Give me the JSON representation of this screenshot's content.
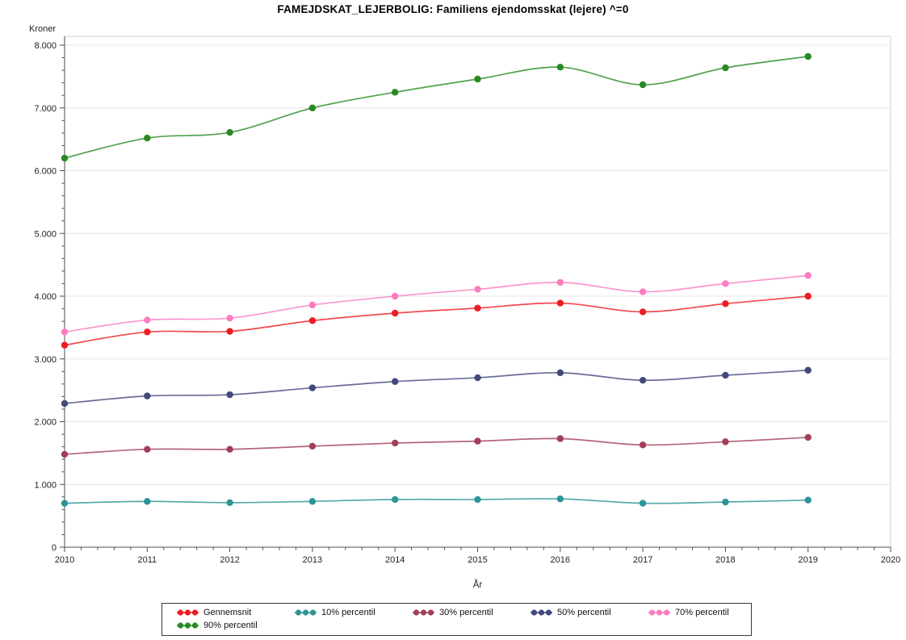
{
  "page": {
    "window_title": "FAMEJDSKAT_LEJERBOLIG: Familiens ejendomsskat (lejere) ^=0"
  },
  "chart_data": {
    "type": "line",
    "title": "FAMEJDSKAT_LEJERBOLIG: Familiens ejendomsskat (lejere) ^=0",
    "ylabel": "Kroner",
    "xlabel": "År",
    "x": [
      2010,
      2011,
      2012,
      2013,
      2014,
      2015,
      2016,
      2017,
      2018,
      2019
    ],
    "xlim": [
      2010,
      2020
    ],
    "ylim": [
      0,
      8000
    ],
    "y_tick_labels": [
      "0",
      "1.000",
      "2.000",
      "3.000",
      "4.000",
      "5.000",
      "6.000",
      "7.000",
      "8.000"
    ],
    "x_tick_labels": [
      "2010",
      "2011",
      "2012",
      "2013",
      "2014",
      "2015",
      "2016",
      "2017",
      "2018",
      "2019",
      "2020"
    ],
    "y_minor_per_major": 4,
    "x_minor_per_major": 4,
    "grid": "horizontal-only",
    "legend_position": "bottom",
    "legend_items_first_row": 5,
    "series": [
      {
        "name": "Gennemsnit",
        "color": "#ee1c23",
        "values": [
          3220,
          3430,
          3440,
          3610,
          3730,
          3810,
          3890,
          3750,
          3880,
          4000
        ]
      },
      {
        "name": "10% percentil",
        "color": "#2b9597",
        "values": [
          700,
          730,
          710,
          730,
          760,
          760,
          770,
          700,
          720,
          750
        ]
      },
      {
        "name": "30% percentil",
        "color": "#a23e58",
        "values": [
          1480,
          1560,
          1560,
          1610,
          1660,
          1690,
          1730,
          1630,
          1680,
          1750
        ]
      },
      {
        "name": "50% percentil",
        "color": "#44497c",
        "values": [
          2290,
          2410,
          2430,
          2540,
          2640,
          2700,
          2780,
          2660,
          2740,
          2820
        ]
      },
      {
        "name": "70% percentil",
        "color": "#fb7cc1",
        "values": [
          3430,
          3620,
          3650,
          3860,
          4000,
          4110,
          4220,
          4070,
          4200,
          4330
        ]
      },
      {
        "name": "90% percentil",
        "color": "#278a22",
        "values": [
          6200,
          6520,
          6610,
          7000,
          7250,
          7460,
          7650,
          7370,
          7640,
          7820
        ]
      }
    ],
    "colors": {
      "frame": "#cfcfcf",
      "gridline": "#e7e7e7",
      "axis": "#4d4d4d",
      "text": "#222222"
    }
  }
}
